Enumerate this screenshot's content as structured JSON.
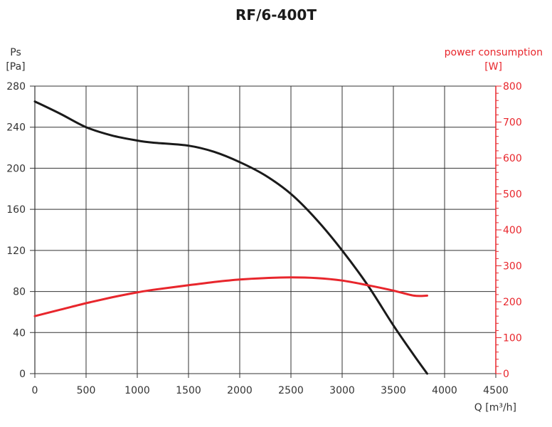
{
  "chart_data": {
    "type": "line",
    "title": "RF/6-400T",
    "xlabel": "Q [m³/h]",
    "ylabel_line1": "Ps",
    "ylabel_line2": "[Pa]",
    "y2label_line1": "power consumption",
    "y2label_line2": "[W]",
    "xlim": [
      0,
      4500
    ],
    "ylim": [
      0,
      280
    ],
    "y2lim": [
      0,
      800
    ],
    "xticks": [
      0,
      500,
      1000,
      1500,
      2000,
      2500,
      3000,
      3500,
      4000,
      4500
    ],
    "yticks": [
      0,
      40,
      80,
      120,
      160,
      200,
      240,
      280
    ],
    "y2ticks": [
      0,
      100,
      200,
      300,
      400,
      500,
      600,
      700,
      800
    ],
    "grid": true,
    "colors": {
      "pressure": "#1a1a1a",
      "power": "#e8262c"
    },
    "series": [
      {
        "axis": "left",
        "x": [
          0,
          250,
          500,
          750,
          1000,
          1150,
          1500,
          1750,
          2000,
          2250,
          2500,
          2750,
          3000,
          3250,
          3500,
          3700,
          3830
        ],
        "values": [
          265,
          253,
          240,
          232,
          227,
          225,
          222,
          216,
          206,
          193,
          175,
          150,
          120,
          86,
          47,
          18,
          0
        ]
      },
      {
        "axis": "right",
        "x": [
          0,
          250,
          500,
          750,
          1000,
          1150,
          1500,
          1750,
          2000,
          2250,
          2500,
          2750,
          3000,
          3250,
          3500,
          3700,
          3830
        ],
        "values": [
          160,
          178,
          196,
          212,
          226,
          233,
          246,
          255,
          262,
          266,
          268,
          266,
          259,
          246,
          231,
          217,
          217
        ]
      }
    ]
  }
}
